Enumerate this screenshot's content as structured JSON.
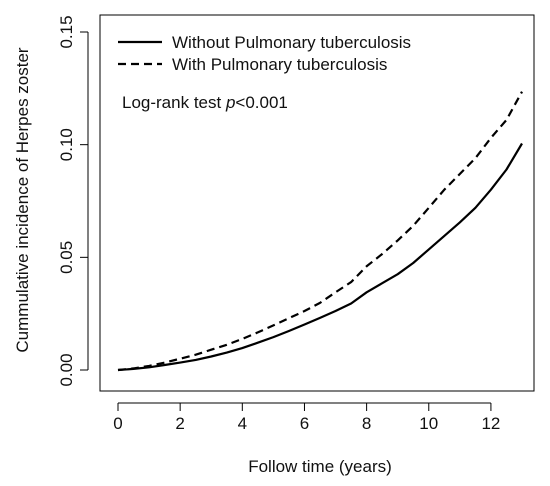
{
  "chart_data": {
    "type": "line",
    "title": "",
    "xlabel": "Follow time (years)",
    "ylabel": "Cummulative incidence of Herpes zoster",
    "xlim": [
      0,
      13
    ],
    "ylim": [
      0,
      0.15
    ],
    "xticks": [
      0,
      2,
      4,
      6,
      8,
      10,
      12
    ],
    "xtick_labels": [
      "0",
      "2",
      "4",
      "6",
      "8",
      "10",
      "12"
    ],
    "yticks": [
      0,
      0.05,
      0.1,
      0.15
    ],
    "ytick_labels": [
      "0.00",
      "0.05",
      "0.10",
      "0.15"
    ],
    "grid": false,
    "legend_position": "top-left",
    "annotation": {
      "prefix": "Log-rank test ",
      "italic": "p",
      "suffix": "<0.001"
    },
    "series": [
      {
        "name": "Without Pulmonary tuberculosis",
        "line_style": "solid",
        "color": "#000000",
        "x": [
          0,
          0.5,
          1,
          1.5,
          2,
          2.5,
          3,
          3.5,
          4,
          4.5,
          5,
          5.5,
          6,
          6.5,
          7,
          7.5,
          8,
          8.5,
          9,
          9.5,
          10,
          10.5,
          11,
          11.5,
          12,
          12.5,
          13
        ],
        "y": [
          0,
          0.0005,
          0.0012,
          0.0022,
          0.0033,
          0.0045,
          0.006,
          0.0077,
          0.0097,
          0.0121,
          0.0146,
          0.0173,
          0.0202,
          0.0231,
          0.0262,
          0.0295,
          0.0345,
          0.0385,
          0.0425,
          0.0475,
          0.0535,
          0.0595,
          0.0655,
          0.072,
          0.08,
          0.089,
          0.1005
        ]
      },
      {
        "name": "With Pulmonary tuberculosis",
        "line_style": "dashed",
        "color": "#000000",
        "x": [
          0,
          0.5,
          1,
          1.5,
          2,
          2.5,
          3,
          3.5,
          4,
          4.5,
          5,
          5.5,
          6,
          6.5,
          7,
          7.5,
          8,
          8.5,
          9,
          9.5,
          10,
          10.5,
          11,
          11.5,
          12,
          12.5,
          13
        ],
        "y": [
          0,
          0.0007,
          0.0018,
          0.0033,
          0.005,
          0.0068,
          0.009,
          0.0112,
          0.0138,
          0.0167,
          0.0198,
          0.023,
          0.0262,
          0.0298,
          0.0345,
          0.039,
          0.046,
          0.0515,
          0.0575,
          0.064,
          0.072,
          0.08,
          0.087,
          0.094,
          0.103,
          0.111,
          0.1235
        ]
      }
    ]
  }
}
